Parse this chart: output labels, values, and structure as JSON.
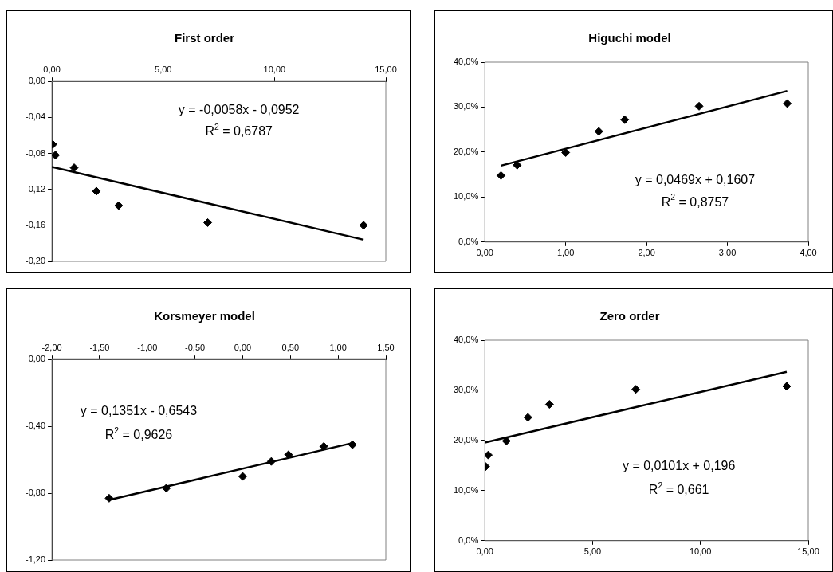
{
  "chart_data": [
    {
      "type": "scatter",
      "title": "First order",
      "xlim": [
        0,
        15
      ],
      "xticks": [
        {
          "value": 0,
          "label": "0,00"
        },
        {
          "value": 5,
          "label": "5,00"
        },
        {
          "value": 10,
          "label": "10,00"
        },
        {
          "value": 15,
          "label": "15,00"
        }
      ],
      "ylim": [
        -0.2,
        0
      ],
      "yticks": [
        {
          "value": -0.2,
          "label": "-0,20"
        },
        {
          "value": -0.16,
          "label": "-0,16"
        },
        {
          "value": -0.12,
          "label": "-0,12"
        },
        {
          "value": -0.08,
          "label": "-0,08"
        },
        {
          "value": -0.04,
          "label": "-0,04"
        },
        {
          "value": 0,
          "label": "0,00"
        }
      ],
      "legend": false,
      "series": [
        {
          "type": "scatter",
          "color": "#000000",
          "marker": "diamond",
          "x": [
            0.04,
            0.16,
            1,
            2,
            3,
            7,
            14
          ],
          "values": [
            -0.07,
            -0.082,
            -0.096,
            -0.122,
            -0.138,
            -0.157,
            -0.16
          ]
        },
        {
          "type": "line",
          "color": "#000000",
          "marker": "none",
          "x": [
            0,
            14
          ],
          "values": [
            -0.095,
            -0.176
          ]
        }
      ],
      "annotations": [
        "y = -0,0058x - 0,0952",
        "R$^{2}$ = 0,6787"
      ]
    },
    {
      "type": "scatter",
      "title": "Higuchi model",
      "xlim": [
        0,
        4
      ],
      "xticks": [
        {
          "value": 0,
          "label": "0,00"
        },
        {
          "value": 1,
          "label": "1,00"
        },
        {
          "value": 2,
          "label": "2,00"
        },
        {
          "value": 3,
          "label": "3,00"
        },
        {
          "value": 4,
          "label": "4,00"
        }
      ],
      "ylim": [
        0,
        40
      ],
      "yticks": [
        {
          "value": 0,
          "label": "0,0%"
        },
        {
          "value": 10,
          "label": "10,0%"
        },
        {
          "value": 20,
          "label": "20,0%"
        },
        {
          "value": 30,
          "label": "30,0%"
        },
        {
          "value": 40,
          "label": "40,0%"
        }
      ],
      "legend": false,
      "series": [
        {
          "type": "scatter",
          "color": "#000000",
          "marker": "diamond",
          "x": [
            0.2,
            0.4,
            1,
            1.41,
            1.73,
            2.65,
            3.74
          ],
          "values": [
            14.8,
            17.1,
            19.9,
            24.6,
            27.2,
            30.2,
            30.8
          ]
        },
        {
          "type": "line",
          "color": "#000000",
          "marker": "none",
          "x": [
            0.2,
            3.74
          ],
          "values": [
            17,
            33.6
          ]
        }
      ],
      "annotations": [
        "y = 0,0469x + 0,1607",
        "R$^{2}$ = 0,8757"
      ]
    },
    {
      "type": "scatter",
      "title": "Korsmeyer model",
      "xlim": [
        -2,
        1.5
      ],
      "xticks": [
        {
          "value": -2,
          "label": "-2,00"
        },
        {
          "value": -1.5,
          "label": "-1,50"
        },
        {
          "value": -1,
          "label": "-1,00"
        },
        {
          "value": -0.5,
          "label": "-0,50"
        },
        {
          "value": 0,
          "label": "0,00"
        },
        {
          "value": 0.5,
          "label": "0,50"
        },
        {
          "value": 1,
          "label": "1,00"
        },
        {
          "value": 1.5,
          "label": "1,50"
        }
      ],
      "ylim": [
        -1.2,
        0
      ],
      "yticks": [
        {
          "value": -1.2,
          "label": "-1,20"
        },
        {
          "value": -0.8,
          "label": "-0,80"
        },
        {
          "value": -0.4,
          "label": "-0,40"
        },
        {
          "value": 0,
          "label": "0,00"
        }
      ],
      "legend": false,
      "series": [
        {
          "type": "scatter",
          "color": "#000000",
          "marker": "diamond",
          "x": [
            -1.4,
            -0.8,
            0,
            0.3,
            0.48,
            0.85,
            1.15
          ],
          "values": [
            -0.83,
            -0.77,
            -0.7,
            -0.61,
            -0.57,
            -0.52,
            -0.51
          ]
        },
        {
          "type": "line",
          "color": "#000000",
          "marker": "none",
          "x": [
            -1.4,
            1.15
          ],
          "values": [
            -0.84,
            -0.5
          ]
        }
      ],
      "annotations": [
        "y = 0,1351x - 0,6543",
        "R$^{2}$ = 0,9626"
      ]
    },
    {
      "type": "scatter",
      "title": "Zero order",
      "xlim": [
        0,
        15
      ],
      "xticks": [
        {
          "value": 0,
          "label": "0,00"
        },
        {
          "value": 5,
          "label": "5,00"
        },
        {
          "value": 10,
          "label": "10,00"
        },
        {
          "value": 15,
          "label": "15,00"
        }
      ],
      "ylim": [
        0,
        40
      ],
      "yticks": [
        {
          "value": 0,
          "label": "0,0%"
        },
        {
          "value": 10,
          "label": "10,0%"
        },
        {
          "value": 20,
          "label": "20,0%"
        },
        {
          "value": 30,
          "label": "30,0%"
        },
        {
          "value": 40,
          "label": "40,0%"
        }
      ],
      "legend": false,
      "series": [
        {
          "type": "scatter",
          "color": "#000000",
          "marker": "diamond",
          "x": [
            0.04,
            0.16,
            1,
            2,
            3,
            7,
            14
          ],
          "values": [
            14.8,
            17.1,
            19.9,
            24.6,
            27.2,
            30.2,
            30.8
          ]
        },
        {
          "type": "line",
          "color": "#000000",
          "marker": "none",
          "x": [
            0,
            14
          ],
          "values": [
            19.6,
            33.7
          ]
        }
      ],
      "annotations": [
        "y = 0,0101x + 0,196",
        "R$^{2}$ = 0,661"
      ]
    }
  ]
}
